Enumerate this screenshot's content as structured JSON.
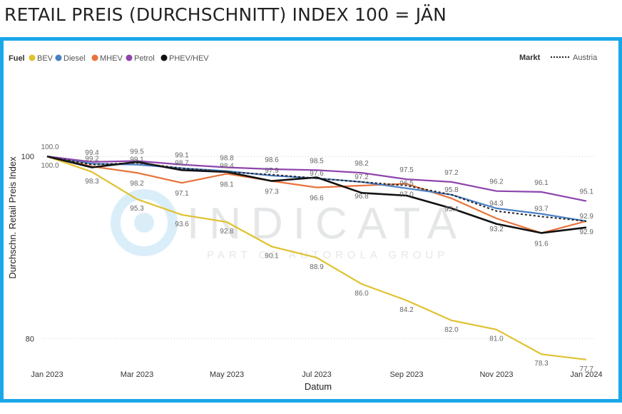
{
  "page": {
    "title": "RETAIL PREIS (DURCHSCHNITT) INDEX 100 = JÄN"
  },
  "watermark": {
    "brand": "INDICATA",
    "tagline": "PART OF AUTOROLA GROUP"
  },
  "colors": {
    "frame": "#1aa7e8",
    "BEV": "#e0c12f",
    "Diesel": "#4a7fc4",
    "MHEV": "#e8733a",
    "Petrol": "#8e44ad",
    "PHEV/HEV": "#111111",
    "Austria": "#222222"
  },
  "chart_data": {
    "type": "line",
    "xlabel": "Datum",
    "ylabel": "Durchschn. Retail Preis Index",
    "ylim": [
      78,
      101.5
    ],
    "yticks": [
      80,
      100
    ],
    "x": [
      "2023-01",
      "2023-02",
      "2023-03",
      "2023-04",
      "2023-05",
      "2023-06",
      "2023-07",
      "2023-08",
      "2023-09",
      "2023-10",
      "2023-11",
      "2023-12",
      "2024-01"
    ],
    "xtick_labels": [
      "Jan 2023",
      "Mar 2023",
      "May 2023",
      "Jul 2023",
      "Sep 2023",
      "Nov 2023",
      "Jan 2024"
    ],
    "legend": {
      "title": "Fuel",
      "placement": "top-left"
    },
    "legend2": {
      "title": "Markt",
      "placement": "top-right"
    },
    "grid": "dotted horizontal at 80 and 100",
    "series": [
      {
        "name": "BEV",
        "values": [
          100.0,
          98.3,
          95.3,
          93.6,
          92.8,
          90.1,
          88.9,
          86.0,
          84.2,
          82.0,
          81.0,
          78.3,
          77.7
        ]
      },
      {
        "name": "Diesel",
        "values": [
          100.0,
          99.2,
          99.1,
          98.7,
          98.4,
          97.9,
          97.6,
          97.2,
          96.5,
          95.8,
          94.3,
          93.7,
          92.9
        ]
      },
      {
        "name": "MHEV",
        "values": [
          100.0,
          98.9,
          98.2,
          97.1,
          98.1,
          97.3,
          96.6,
          96.8,
          97.0,
          95.4,
          93.2,
          91.6,
          92.9
        ]
      },
      {
        "name": "Petrol",
        "values": [
          100.0,
          99.4,
          99.5,
          99.1,
          98.8,
          98.6,
          98.5,
          98.2,
          97.5,
          97.2,
          96.2,
          96.1,
          95.1
        ]
      },
      {
        "name": "PHEV/HEV",
        "values": [
          100.0,
          98.8,
          99.4,
          98.5,
          98.3,
          97.3,
          97.7,
          96.0,
          95.7,
          94.3,
          92.6,
          91.6,
          92.2
        ]
      },
      {
        "name": "Austria",
        "legend_group": "Markt",
        "values": [
          100.0,
          99.1,
          99.3,
          98.7,
          98.3,
          98.0,
          97.6,
          97.2,
          96.8,
          95.8,
          94.0,
          93.4,
          92.9
        ]
      }
    ],
    "data_labels": {
      "BEV": [
        "100.0",
        "98.3",
        "95.3",
        "93.6",
        "92.8",
        "90.1",
        "88.9",
        "86.0",
        "84.2",
        "82.0",
        "81.0",
        "78.3",
        "77.7"
      ],
      "Diesel": [
        "",
        "99.2",
        "99.1",
        "98.7",
        "98.4",
        "97.9",
        "97.6",
        "97.2",
        "96.5",
        "95.8",
        "94.3",
        "93.7",
        "92.9"
      ],
      "MHEV": [
        "",
        "",
        "98.2",
        "97.1",
        "98.1",
        "97.3",
        "96.6",
        "96.8",
        "97.0",
        "95.4",
        "93.2",
        "91.6",
        "92.9"
      ],
      "Petrol": [
        "100.0",
        "99.4",
        "99.5",
        "99.1",
        "98.8",
        "98.6",
        "98.5",
        "98.2",
        "97.5",
        "97.2",
        "96.2",
        "96.1",
        "95.1"
      ]
    }
  }
}
